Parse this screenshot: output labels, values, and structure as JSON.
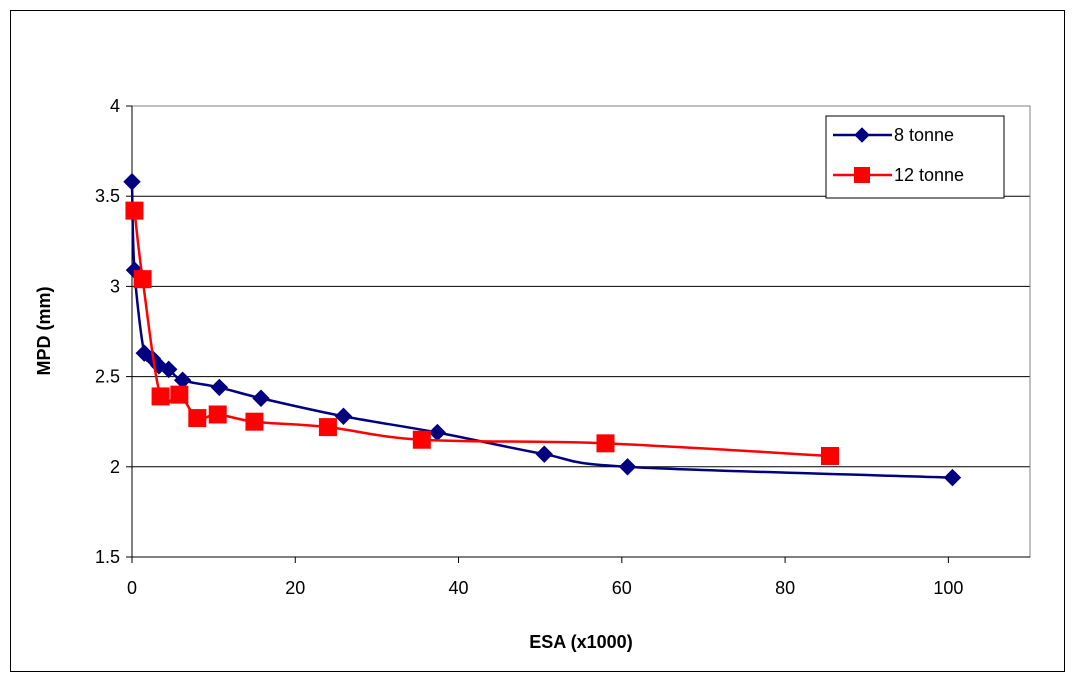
{
  "chart_data": {
    "type": "line",
    "xlabel": "ESA (x1000)",
    "ylabel": "MPD (mm)",
    "xlim": [
      0,
      110
    ],
    "ylim": [
      1.5,
      4
    ],
    "x_ticks": [
      0,
      20,
      40,
      60,
      80,
      100
    ],
    "y_ticks": [
      1.5,
      2,
      2.5,
      3,
      3.5,
      4
    ],
    "grid": "horizontal",
    "legend_position": "top-right",
    "series": [
      {
        "name": "8 tonne",
        "color": "#000080",
        "marker": "diamond",
        "x": [
          0,
          0.3,
          1.5,
          2.5,
          3.3,
          4.5,
          6.2,
          10.7,
          15.8,
          25.9,
          37.4,
          50.5,
          60.7,
          100.5
        ],
        "y": [
          3.58,
          3.09,
          2.63,
          2.6,
          2.56,
          2.54,
          2.48,
          2.44,
          2.38,
          2.28,
          2.19,
          2.07,
          2.0,
          1.94
        ]
      },
      {
        "name": "12 tonne",
        "color": "#ff0000",
        "marker": "square",
        "x": [
          0.3,
          1.3,
          3.5,
          5.8,
          8.0,
          10.5,
          15.0,
          24.0,
          35.5,
          58.0,
          85.5
        ],
        "y": [
          3.42,
          3.04,
          2.39,
          2.4,
          2.27,
          2.29,
          2.25,
          2.22,
          2.15,
          2.13,
          2.06
        ]
      }
    ]
  }
}
